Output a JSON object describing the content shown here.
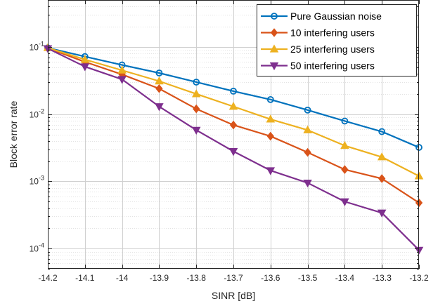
{
  "chart_data": {
    "type": "line",
    "title": "",
    "xlabel": "SINR [dB]",
    "ylabel": "Block error rate",
    "x": [
      -14.2,
      -14.1,
      -14,
      -13.9,
      -13.8,
      -13.7,
      -13.6,
      -13.5,
      -13.4,
      -13.3,
      -13.2
    ],
    "x_tick_labels": [
      "-14.2",
      "-14.1",
      "-14",
      "-13.9",
      "-13.8",
      "-13.7",
      "-13.6",
      "-13.5",
      "-13.4",
      "-13.3",
      "-13.2"
    ],
    "xlim": [
      -14.2,
      -13.2
    ],
    "y_scale": "log",
    "ylim": [
      5e-05,
      0.5
    ],
    "y_ticks": [
      0.1,
      0.01,
      0.001,
      0.0001
    ],
    "y_tick_labels": [
      {
        "base": "10",
        "exp": "-1"
      },
      {
        "base": "10",
        "exp": "-2"
      },
      {
        "base": "10",
        "exp": "-3"
      },
      {
        "base": "10",
        "exp": "-4"
      }
    ],
    "grid": true,
    "minor_grid": true,
    "legend_position": "top-right",
    "series": [
      {
        "name": "Pure Gaussian noise",
        "color": "#0072BD",
        "marker": "circle",
        "values": [
          0.097,
          0.072,
          0.054,
          0.041,
          0.03,
          0.022,
          0.0165,
          0.0115,
          0.0079,
          0.0055,
          0.0032
        ]
      },
      {
        "name": "10 interfering users",
        "color": "#D95319",
        "marker": "diamond",
        "values": [
          0.096,
          0.06,
          0.039,
          0.024,
          0.012,
          0.0069,
          0.0047,
          0.0027,
          0.0015,
          0.0011,
          0.00048
        ]
      },
      {
        "name": "25 interfering users",
        "color": "#EDB120",
        "marker": "triangle-up",
        "values": [
          0.097,
          0.065,
          0.045,
          0.031,
          0.02,
          0.013,
          0.0084,
          0.0058,
          0.0034,
          0.0023,
          0.0012
        ]
      },
      {
        "name": "50 interfering users",
        "color": "#7E2F8E",
        "marker": "triangle-down",
        "values": [
          0.095,
          0.051,
          0.033,
          0.013,
          0.0058,
          0.0028,
          0.00145,
          0.00095,
          0.0005,
          0.00034,
          9.5e-05
        ]
      }
    ]
  }
}
